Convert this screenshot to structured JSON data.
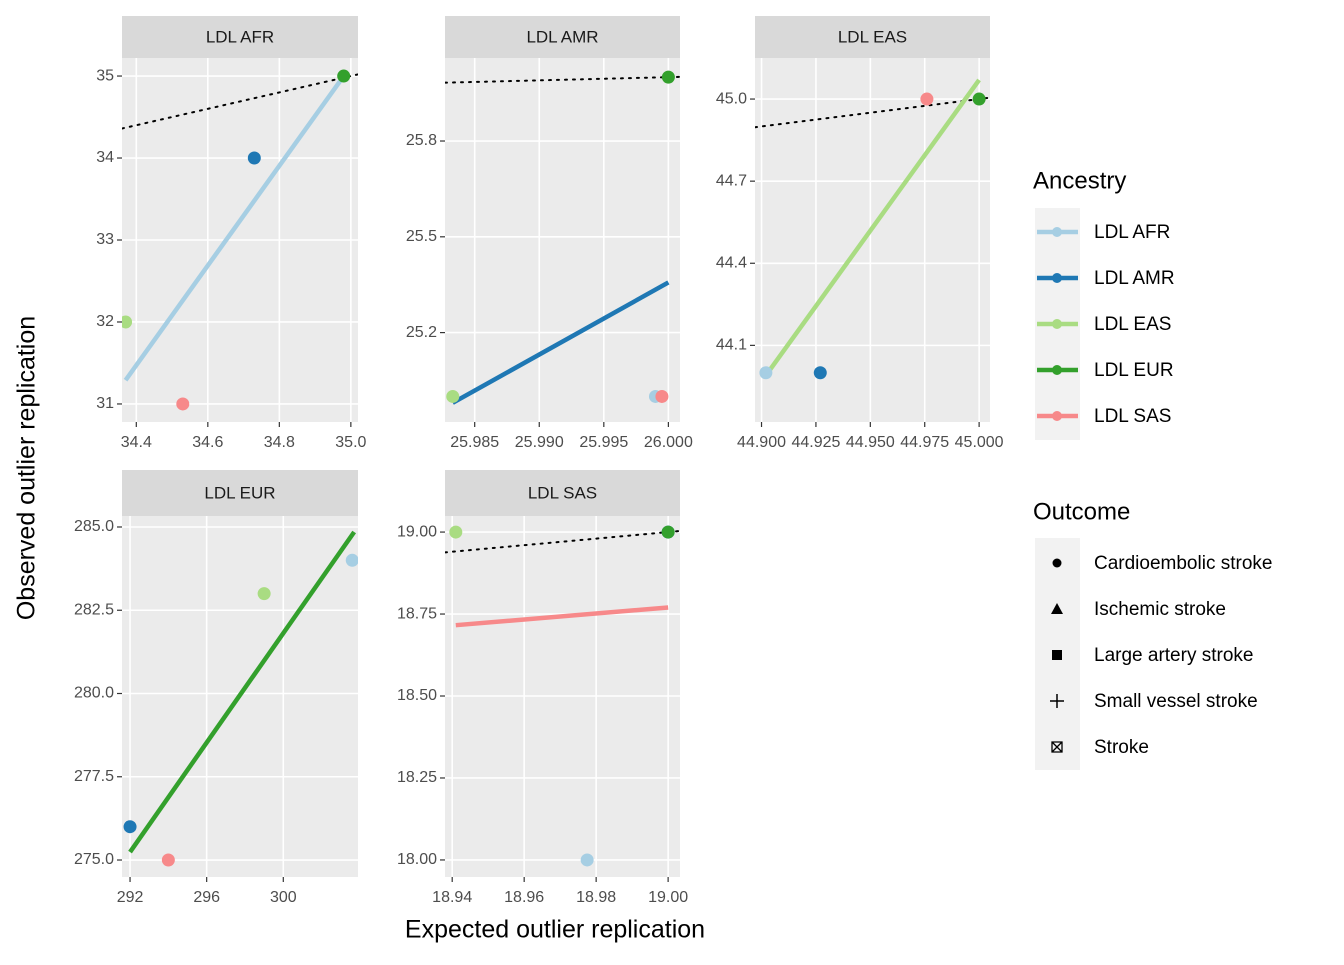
{
  "chart_data": {
    "type": "scatter",
    "xlabel": "Expected outlier replication",
    "ylabel": "Observed outlier replication",
    "identity_line": true,
    "grid": true,
    "series": [
      {
        "name": "LDL AFR",
        "color": "#a6cee3"
      },
      {
        "name": "LDL AMR",
        "color": "#1f78b4"
      },
      {
        "name": "LDL EAS",
        "color": "#a9dc82"
      },
      {
        "name": "LDL EUR",
        "color": "#33a02c"
      },
      {
        "name": "LDL SAS",
        "color": "#f7898a"
      }
    ],
    "legend_title": "Ancestry",
    "outcome_legend": {
      "title": "Outcome",
      "items": [
        "Cardioembolic stroke",
        "Ischemic stroke",
        "Large artery stroke",
        "Small vessel stroke",
        "Stroke"
      ]
    },
    "panels": [
      {
        "title": "LDL AFR",
        "xlim": [
          34.36,
          35.02
        ],
        "ylim": [
          30.78,
          35.22
        ],
        "xticks": [
          34.4,
          34.6,
          34.8,
          {
            "value": 35,
            "label": "35.0"
          }
        ],
        "yticks": [
          31,
          32,
          33,
          34,
          35
        ],
        "points": [
          {
            "name": "LDL EAS",
            "x": [
              34.37
            ],
            "y": [
              32
            ]
          },
          {
            "name": "LDL SAS",
            "x": [
              34.53
            ],
            "y": [
              31
            ]
          },
          {
            "name": "LDL AMR",
            "x": [
              34.73
            ],
            "y": [
              34
            ]
          },
          {
            "name": "LDL EUR",
            "x": [
              34.98
            ],
            "y": [
              35
            ]
          }
        ],
        "fit": {
          "x": [
            34.37,
            34.98
          ],
          "y": [
            31.29,
            35.0
          ]
        }
      },
      {
        "title": "LDL AMR",
        "xlim": [
          25.9827,
          26.0009
        ],
        "ylim": [
          24.92,
          26.06
        ],
        "xticks": [
          25.985,
          {
            "value": 25.99,
            "label": "25.990"
          },
          25.995,
          {
            "value": 26,
            "label": "26.000"
          }
        ],
        "yticks": [
          25.2,
          25.5,
          25.8
        ],
        "points": [
          {
            "name": "LDL EAS",
            "x": [
              25.9833
            ],
            "y": [
              25
            ]
          },
          {
            "name": "LDL AFR",
            "x": [
              25.999
            ],
            "y": [
              25
            ]
          },
          {
            "name": "LDL SAS",
            "x": [
              25.9995
            ],
            "y": [
              25
            ]
          },
          {
            "name": "LDL EUR",
            "x": [
              26
            ],
            "y": [
              26
            ]
          }
        ],
        "fit": {
          "x": [
            25.9833,
            26
          ],
          "y": [
            24.98,
            25.357
          ]
        }
      },
      {
        "title": "LDL EAS",
        "xlim": [
          44.897,
          45.005
        ],
        "ylim": [
          43.82,
          45.15
        ],
        "xticks": [
          {
            "value": 44.9,
            "label": "44.900"
          },
          44.925,
          {
            "value": 44.95,
            "label": "44.950"
          },
          44.975,
          {
            "value": 45,
            "label": "45.000"
          }
        ],
        "yticks": [
          44.1,
          44.4,
          44.7,
          {
            "value": 45,
            "label": "45.0"
          }
        ],
        "points": [
          {
            "name": "LDL AFR",
            "x": [
              44.902
            ],
            "y": [
              44
            ]
          },
          {
            "name": "LDL AMR",
            "x": [
              44.927
            ],
            "y": [
              44
            ]
          },
          {
            "name": "LDL SAS",
            "x": [
              44.976
            ],
            "y": [
              45
            ]
          },
          {
            "name": "LDL EUR",
            "x": [
              45
            ],
            "y": [
              45
            ]
          }
        ],
        "fit": {
          "x": [
            44.902,
            45
          ],
          "y": [
            43.99,
            45.07
          ]
        }
      },
      {
        "title": "LDL EUR",
        "xlim": [
          291.58,
          303.9
        ],
        "ylim": [
          274.49,
          285.33
        ],
        "xticks": [
          292,
          296,
          300
        ],
        "yticks": [
          {
            "value": 275,
            "label": "275.0"
          },
          277.5,
          {
            "value": 280,
            "label": "280.0"
          },
          282.5,
          {
            "value": 285,
            "label": "285.0"
          }
        ],
        "points": [
          {
            "name": "LDL AMR",
            "x": [
              292
            ],
            "y": [
              276
            ]
          },
          {
            "name": "LDL SAS",
            "x": [
              294
            ],
            "y": [
              275
            ]
          },
          {
            "name": "LDL EAS",
            "x": [
              299
            ],
            "y": [
              283
            ]
          },
          {
            "name": "LDL AFR",
            "x": [
              303.6
            ],
            "y": [
              284
            ]
          }
        ],
        "fit": {
          "x": [
            292,
            303.7
          ],
          "y": [
            275.24,
            284.85
          ]
        }
      },
      {
        "title": "LDL SAS",
        "xlim": [
          18.938,
          19.0033
        ],
        "ylim": [
          17.948,
          19.049
        ],
        "xticks": [
          18.94,
          18.96,
          18.98,
          {
            "value": 19,
            "label": "19.00"
          }
        ],
        "yticks": [
          {
            "value": 18,
            "label": "18.00"
          },
          18.25,
          {
            "value": 18.5,
            "label": "18.50"
          },
          18.75,
          {
            "value": 19,
            "label": "19.00"
          }
        ],
        "points": [
          {
            "name": "LDL EAS",
            "x": [
              18.941
            ],
            "y": [
              19
            ]
          },
          {
            "name": "LDL AFR",
            "x": [
              18.9775
            ],
            "y": [
              18
            ]
          },
          {
            "name": "LDL AMR",
            "x": [
              19
            ],
            "y": [
              19
            ]
          },
          {
            "name": "LDL EUR",
            "x": [
              19
            ],
            "y": [
              19
            ]
          }
        ],
        "fit": {
          "x": [
            18.941,
            19
          ],
          "y": [
            18.716,
            18.77
          ]
        }
      }
    ]
  }
}
